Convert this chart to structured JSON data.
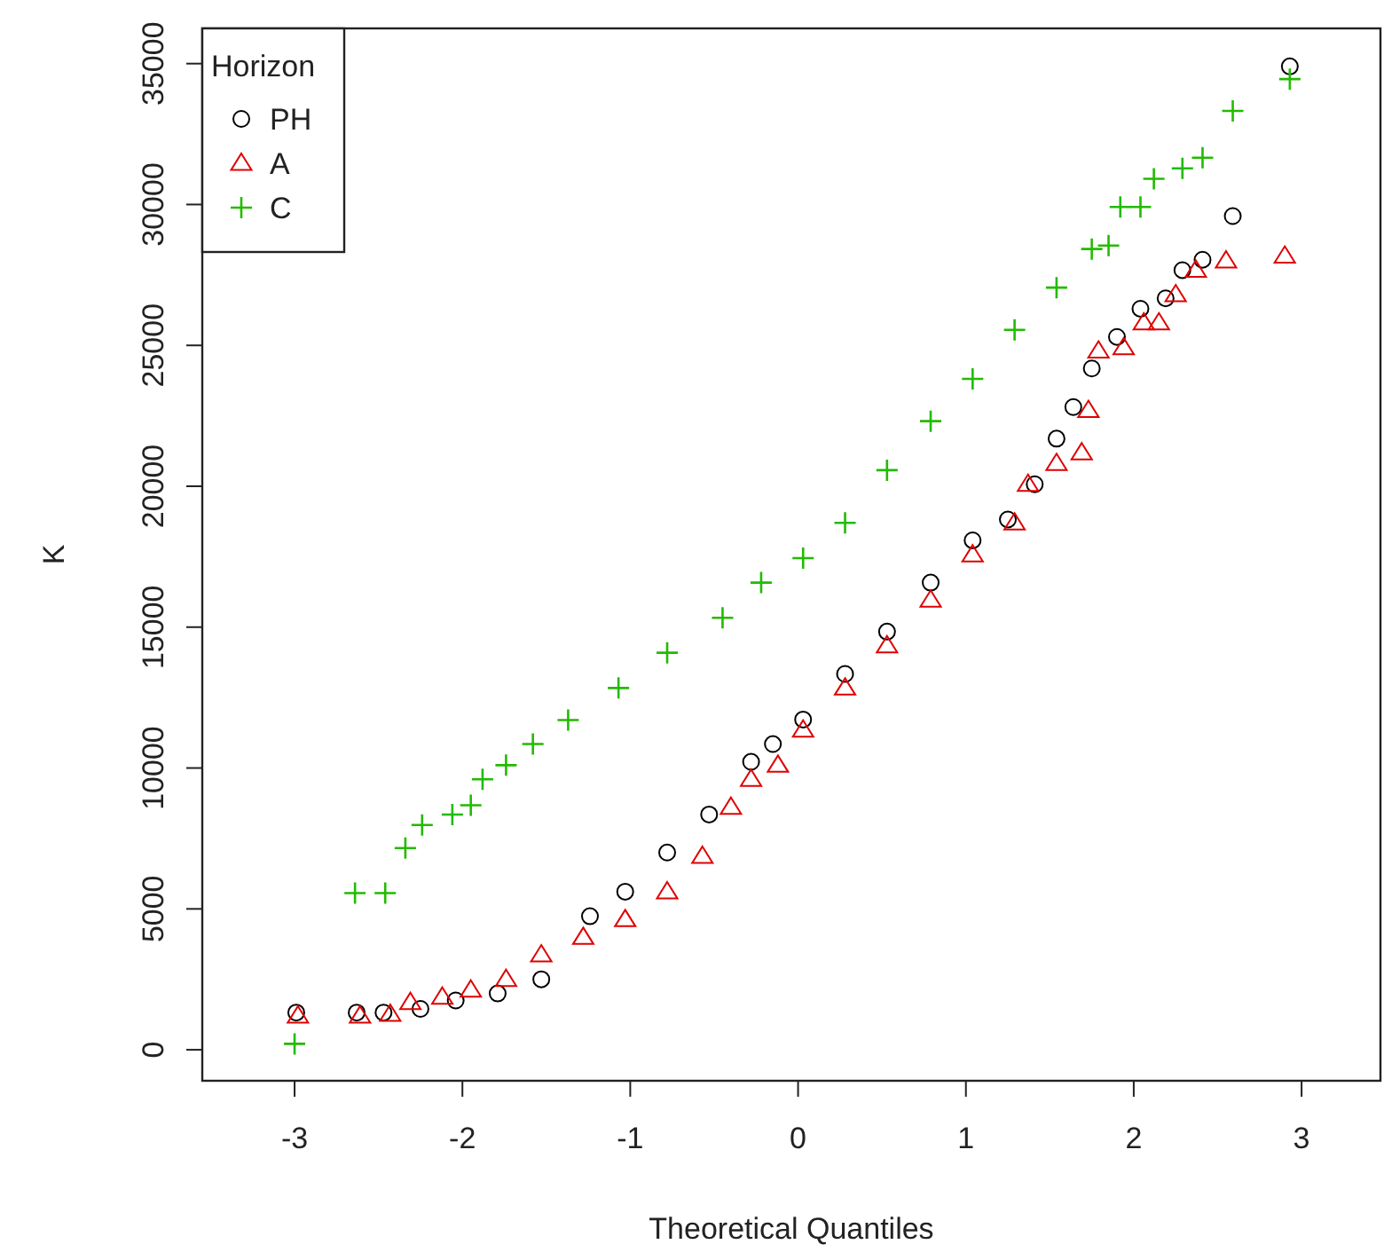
{
  "chart_data": {
    "type": "scatter",
    "xlabel": "Theoretical Quantiles",
    "ylabel": "K",
    "legend_title": "Horizon",
    "legend": "top left",
    "grid": false,
    "xlim": [
      -3.55,
      3.47
    ],
    "ylim": [
      -1100,
      36250
    ],
    "xticks": [
      -3,
      -2,
      -1,
      0,
      1,
      2,
      3
    ],
    "yticks": [
      0,
      5000,
      10000,
      15000,
      20000,
      25000,
      30000,
      35000
    ],
    "series": [
      {
        "name": "PH",
        "color": "#000000",
        "marker": "circle",
        "x": [
          -2.99,
          -2.63,
          -2.47,
          -2.25,
          -2.04,
          -1.79,
          -1.53,
          -1.24,
          -1.03,
          -0.78,
          -0.53,
          -0.28,
          -0.15,
          0.03,
          0.28,
          0.53,
          0.79,
          1.04,
          1.25,
          1.41,
          1.54,
          1.64,
          1.75,
          1.9,
          2.04,
          2.19,
          2.29,
          2.41,
          2.59,
          2.93
        ],
        "values": [
          1320,
          1320,
          1320,
          1450,
          1750,
          2000,
          2500,
          4740,
          5610,
          7000,
          8350,
          10220,
          10850,
          11720,
          13340,
          14840,
          16580,
          18080,
          18820,
          20070,
          21690,
          22810,
          24180,
          25300,
          26300,
          26670,
          27670,
          28040,
          29590,
          34900
        ]
      },
      {
        "name": "A",
        "color": "#df0000",
        "marker": "triangle",
        "x": [
          -2.98,
          -2.61,
          -2.43,
          -2.31,
          -2.12,
          -1.95,
          -1.74,
          -1.53,
          -1.28,
          -1.03,
          -0.78,
          -0.57,
          -0.4,
          -0.28,
          -0.12,
          0.03,
          0.28,
          0.53,
          0.79,
          1.04,
          1.29,
          1.37,
          1.54,
          1.69,
          1.73,
          1.79,
          1.94,
          2.06,
          2.15,
          2.25,
          2.37,
          2.55,
          2.9
        ],
        "values": [
          1200,
          1200,
          1260,
          1680,
          1870,
          2120,
          2500,
          3370,
          3990,
          4620,
          5610,
          6870,
          8610,
          9600,
          10100,
          11350,
          12840,
          14340,
          15960,
          17570,
          18700,
          20070,
          20810,
          21190,
          22690,
          24800,
          24920,
          25800,
          25800,
          26800,
          27670,
          28000,
          28170
        ]
      },
      {
        "name": "C",
        "color": "#22bb00",
        "marker": "cross",
        "x": [
          -3.0,
          -2.64,
          -2.46,
          -2.34,
          -2.24,
          -2.06,
          -1.95,
          -1.88,
          -1.74,
          -1.58,
          -1.37,
          -1.07,
          -0.78,
          -0.45,
          -0.22,
          0.03,
          0.28,
          0.53,
          0.79,
          1.04,
          1.29,
          1.54,
          1.75,
          1.85,
          1.92,
          2.04,
          2.12,
          2.29,
          2.41,
          2.59,
          2.93
        ],
        "values": [
          210,
          5560,
          5560,
          7160,
          7980,
          8350,
          8680,
          9600,
          10100,
          10850,
          11700,
          12840,
          14090,
          15330,
          16580,
          17450,
          18700,
          20570,
          22310,
          23810,
          25550,
          27050,
          28420,
          28540,
          29910,
          29910,
          30910,
          31280,
          31660,
          33320,
          34450
        ]
      }
    ]
  }
}
